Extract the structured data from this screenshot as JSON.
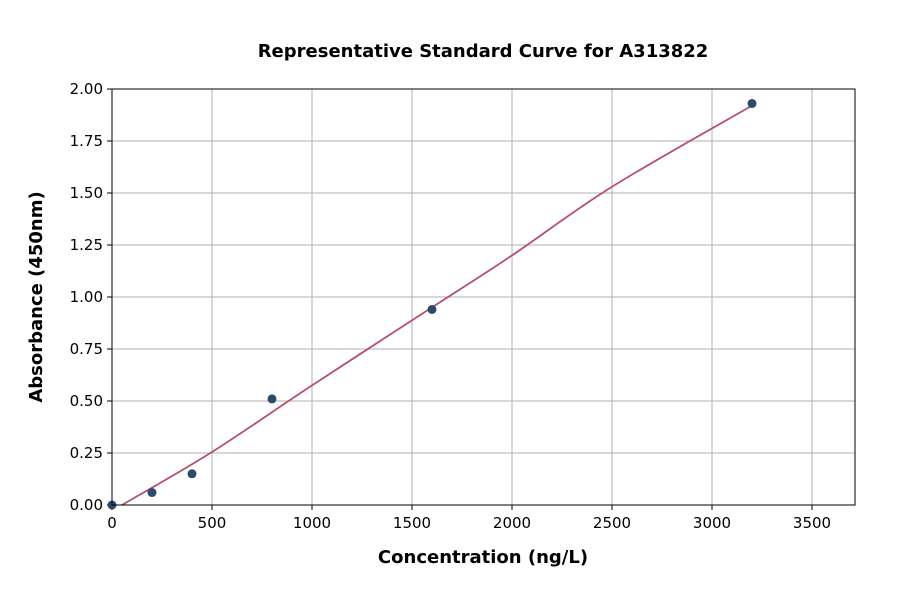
{
  "chart_data": {
    "type": "scatter",
    "title": "Representative Standard Curve for A313822",
    "xlabel": "Concentration (ng/L)",
    "ylabel": "Absorbance (450nm)",
    "xlim": [
      0,
      3715
    ],
    "ylim": [
      0,
      2.0
    ],
    "xticks": [
      0,
      500,
      1000,
      1500,
      2000,
      2500,
      3000,
      3500
    ],
    "xtick_labels": [
      "0",
      "500",
      "1000",
      "1500",
      "2000",
      "2500",
      "3000",
      "3500"
    ],
    "yticks": [
      0,
      0.25,
      0.5,
      0.75,
      1.0,
      1.25,
      1.5,
      1.75,
      2.0
    ],
    "ytick_labels": [
      "0.00",
      "0.25",
      "0.50",
      "0.75",
      "1.00",
      "1.25",
      "1.50",
      "1.75",
      "2.00"
    ],
    "grid": true,
    "points": {
      "x": [
        0,
        200,
        400,
        800,
        1600,
        3200
      ],
      "y": [
        0.0,
        0.06,
        0.15,
        0.51,
        0.94,
        1.93
      ],
      "color": "#2e4a6b"
    },
    "fit_curve": {
      "x": [
        0,
        50,
        500,
        1000,
        1600,
        2000,
        2500,
        3200
      ],
      "y": [
        -0.03,
        0.0,
        0.255,
        0.575,
        0.95,
        1.2,
        1.53,
        1.92
      ],
      "color": "#b5506e"
    }
  }
}
